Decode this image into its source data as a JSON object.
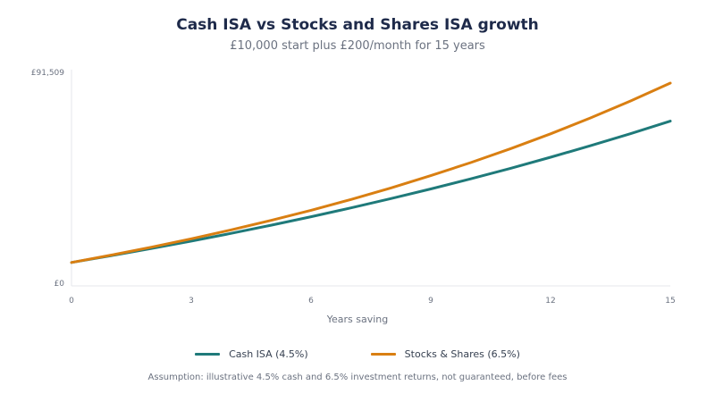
{
  "chart_data": {
    "type": "line",
    "title": "Cash ISA vs Stocks and Shares ISA growth",
    "subtitle": "£10,000 start plus £200/month for 15 years",
    "xlabel": "Years saving",
    "ylabel": "",
    "x_ticks": [
      0,
      3,
      6,
      9,
      12,
      15
    ],
    "y_tick_labels": [
      "£0",
      "£91,509"
    ],
    "xlim": [
      0,
      15
    ],
    "ylim": [
      0,
      91509
    ],
    "grid": false,
    "legend_position": "bottom",
    "x": [
      0,
      1,
      2,
      3,
      4,
      5,
      6,
      7,
      8,
      9,
      10,
      11,
      12,
      13,
      14,
      15
    ],
    "series": [
      {
        "name": "Cash ISA (4.5%)",
        "color": "#1f7a7a",
        "values": [
          10000,
          12907,
          15945,
          19118,
          22434,
          25899,
          29518,
          33299,
          37250,
          41377,
          45688,
          50191,
          54895,
          59809,
          64942,
          70303
        ]
      },
      {
        "name": "Stocks & Shares (6.5%)",
        "color": "#d97f12",
        "values": [
          10000,
          13148,
          16503,
          20078,
          23888,
          27948,
          32275,
          36886,
          41801,
          47038,
          52621,
          58570,
          64911,
          71668,
          78870,
          86547
        ]
      }
    ],
    "annotation": "Assumption: illustrative 4.5% cash and 6.5% investment returns, not guaranteed, before fees"
  }
}
